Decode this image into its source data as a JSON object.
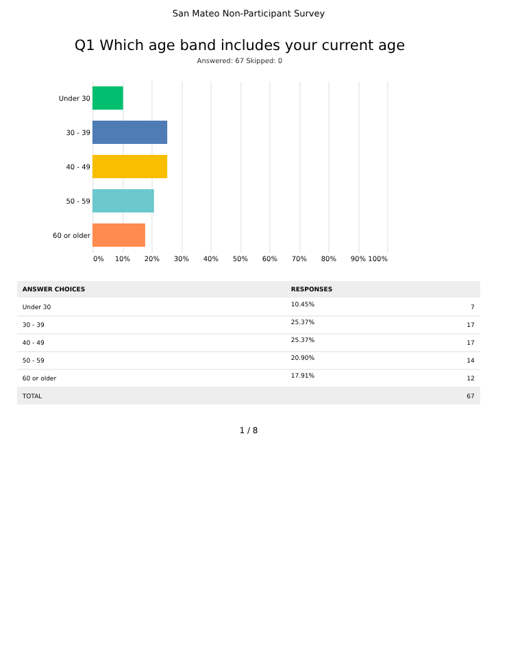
{
  "chart_data": {
    "type": "bar",
    "orientation": "horizontal",
    "title": "Q1 Which age band includes your current age",
    "subtitle": "Answered: 67    Skipped: 0",
    "categories": [
      "Under 30",
      "30 - 39",
      "40 - 49",
      "50 - 59",
      "60 or older"
    ],
    "values": [
      10.4,
      25.4,
      25.4,
      20.9,
      17.9
    ],
    "colors": [
      "#00bf6f",
      "#507cb6",
      "#f9be00",
      "#6bc8cd",
      "#ff8b4f"
    ],
    "xlim": [
      0,
      100
    ],
    "xticks": [
      {
        "value": 0,
        "label": "0%"
      },
      {
        "value": 10,
        "label": "10%"
      },
      {
        "value": 20,
        "label": "20%"
      },
      {
        "value": 30,
        "label": "30%"
      },
      {
        "value": 40,
        "label": "40%"
      },
      {
        "value": 50,
        "label": "50%"
      },
      {
        "value": 60,
        "label": "60%"
      },
      {
        "value": 70,
        "label": "70%"
      },
      {
        "value": 80,
        "label": "80%"
      },
      {
        "value": 90,
        "label": "90%"
      },
      {
        "value": 100,
        "label": "100%"
      }
    ],
    "grid": "x",
    "annotations": [
      "San Mateo Non-Participant Survey",
      "ANSWER CHOICES",
      "RESPONSES",
      "TOTAL",
      "67",
      "7",
      "17",
      "17",
      "14",
      "12",
      "1 / 8",
      "10.45%",
      "25.37%",
      "25.37%",
      "20.90%",
      "17.91%"
    ]
  }
}
